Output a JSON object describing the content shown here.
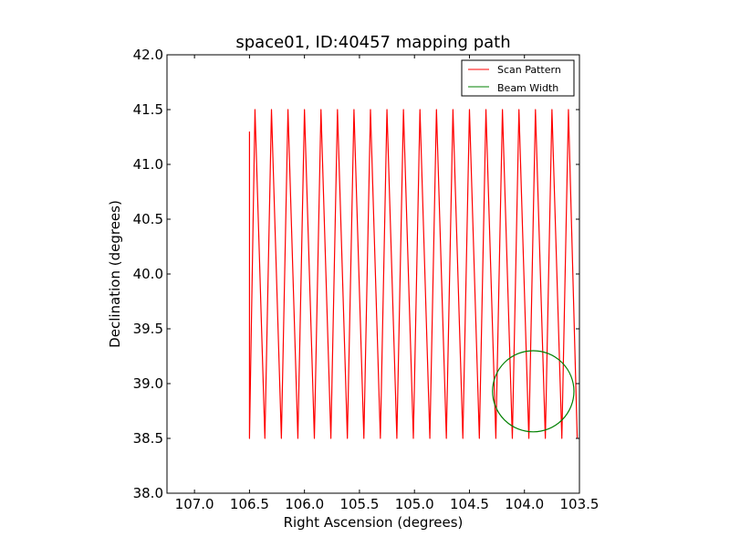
{
  "chart_data": {
    "type": "line",
    "title": "space01, ID:40457 mapping path",
    "xlabel": "Right Ascension (degrees)",
    "ylabel": "Declination (degrees)",
    "xlim": [
      107.25,
      103.5
    ],
    "ylim": [
      38.0,
      42.0
    ],
    "x_inverted": true,
    "xticks": [
      107.0,
      106.5,
      106.0,
      105.5,
      105.0,
      104.5,
      104.0,
      103.5
    ],
    "xtick_labels": [
      "107.0",
      "106.5",
      "106.0",
      "105.5",
      "105.0",
      "104.5",
      "104.0",
      "103.5"
    ],
    "yticks": [
      38.0,
      38.5,
      39.0,
      39.5,
      40.0,
      40.5,
      41.0,
      41.5,
      42.0
    ],
    "ytick_labels": [
      "38.0",
      "38.5",
      "39.0",
      "39.5",
      "40.0",
      "40.5",
      "41.0",
      "41.5",
      "42.0"
    ],
    "grid": false,
    "legend_position": "top-right",
    "series": [
      {
        "name": "Scan Pattern",
        "color": "#ff0000",
        "kind": "raster_scan",
        "start": [
          106.5,
          41.3
        ],
        "dec_low": 38.5,
        "dec_high": 41.5,
        "leg_ra": [
          106.5,
          106.45,
          106.36,
          106.3,
          106.21,
          106.15,
          106.06,
          106.0,
          105.91,
          105.85,
          105.76,
          105.7,
          105.61,
          105.55,
          105.46,
          105.4,
          105.31,
          105.25,
          105.16,
          105.1,
          105.01,
          104.95,
          104.86,
          104.8,
          104.71,
          104.65,
          104.56,
          104.5,
          104.41,
          104.35,
          104.26,
          104.2,
          104.11,
          104.05,
          103.96,
          103.9,
          103.81,
          103.75,
          103.66,
          103.6,
          103.52
        ]
      },
      {
        "name": "Beam Width",
        "color": "#008000",
        "kind": "circle",
        "center": [
          103.92,
          38.93
        ],
        "radius_deg": 0.37
      }
    ]
  }
}
